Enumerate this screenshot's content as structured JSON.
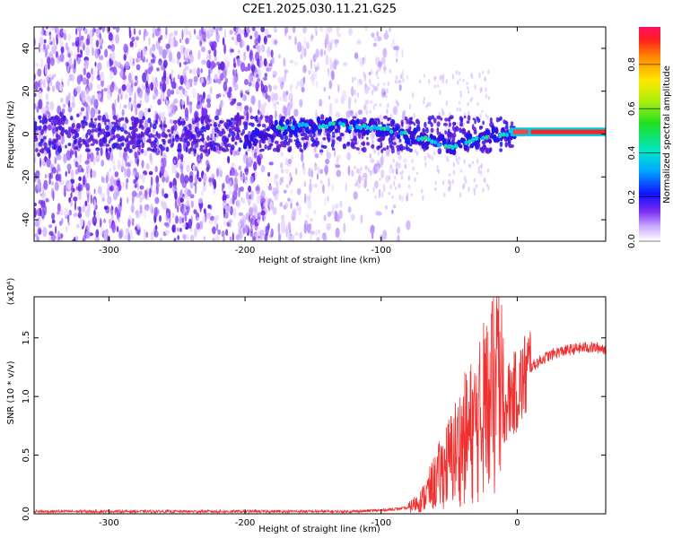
{
  "title": "C2E1.2025.030.11.21.G25",
  "chart_data": [
    {
      "type": "heatmap",
      "xlabel": "Height of straight line (km)",
      "ylabel": "Frequency (Hz)",
      "xlim": [
        -355,
        65
      ],
      "ylim": [
        -50,
        50
      ],
      "xticks": [
        -300,
        -200,
        -100,
        0
      ],
      "yticks": [
        -40,
        -20,
        0,
        20,
        40
      ],
      "colorbar": {
        "label": "Normalized spectral amplitude",
        "range": [
          0,
          0.97
        ],
        "ticks": [
          0.0,
          0.2,
          0.4,
          0.6,
          0.8
        ],
        "tick_labels": [
          "0.0",
          "0.2",
          "0.4",
          "0.6",
          "0.8"
        ]
      },
      "signal_ridge": [
        {
          "x": -200,
          "y": -3
        },
        {
          "x": -175,
          "y": 3
        },
        {
          "x": -150,
          "y": 4
        },
        {
          "x": -125,
          "y": 4
        },
        {
          "x": -100,
          "y": 3
        },
        {
          "x": -90,
          "y": 1
        },
        {
          "x": -75,
          "y": -1
        },
        {
          "x": -60,
          "y": -4
        },
        {
          "x": -45,
          "y": -6
        },
        {
          "x": -30,
          "y": -2
        },
        {
          "x": -15,
          "y": 0
        },
        {
          "x": 0,
          "y": 1
        },
        {
          "x": 20,
          "y": 1
        },
        {
          "x": 40,
          "y": 1
        },
        {
          "x": 65,
          "y": 1
        }
      ]
    },
    {
      "type": "line",
      "xlabel": "Height of straight line (km)",
      "ylabel": "SNR (10 * v/v)",
      "yscale_label": "(x10⁴)",
      "xlim": [
        -355,
        65
      ],
      "ylim": [
        0,
        1.85
      ],
      "xticks": [
        -300,
        -200,
        -100,
        0
      ],
      "yticks": [
        0.0,
        0.5,
        1.0,
        1.5
      ],
      "ytick_labels": [
        "0.0",
        "0.5",
        "1.0",
        "1.5"
      ],
      "color": "#f03030",
      "series": [
        {
          "x": [
            -355,
            -300,
            -250,
            -200,
            -150,
            -120,
            -100,
            -80,
            -70,
            -60,
            -50,
            -40,
            -30,
            -20,
            -15,
            -10,
            -5,
            0,
            5,
            10,
            20,
            30,
            40,
            50,
            65
          ],
          "y": [
            0.02,
            0.02,
            0.02,
            0.02,
            0.02,
            0.02,
            0.03,
            0.05,
            0.12,
            0.28,
            0.45,
            0.62,
            0.75,
            0.9,
            1.05,
            0.9,
            1.0,
            1.05,
            1.15,
            1.25,
            1.33,
            1.38,
            1.4,
            1.42,
            1.41
          ]
        }
      ]
    }
  ]
}
